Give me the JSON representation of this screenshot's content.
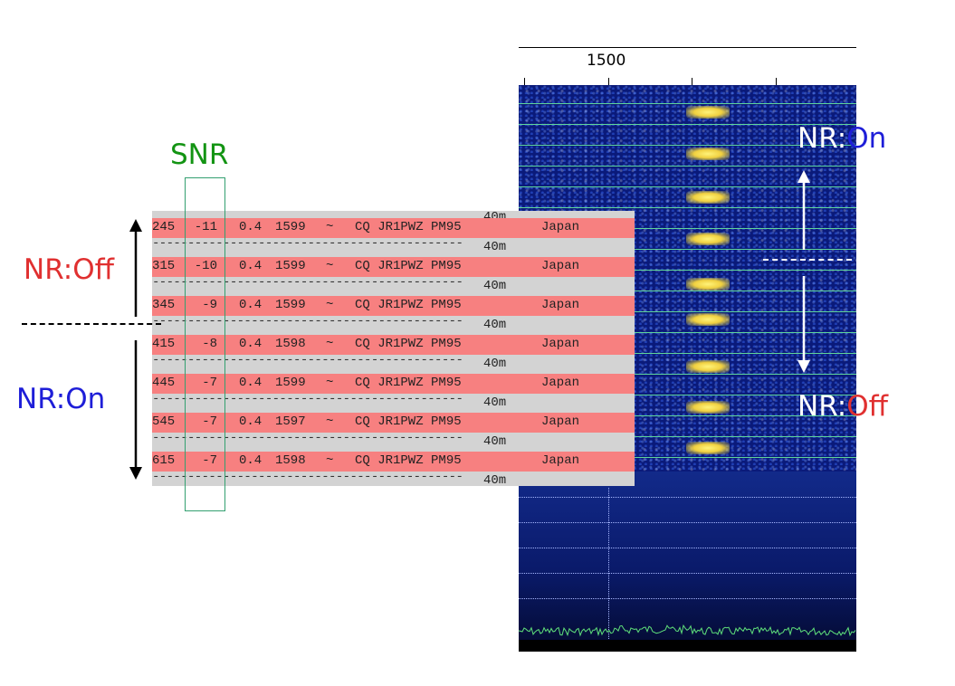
{
  "waterfall": {
    "freq_label": "1500",
    "annotation_top_prefix": "NR:",
    "annotation_top_value": "On",
    "annotation_bottom_prefix": "NR:",
    "annotation_bottom_value": "Off"
  },
  "decode_list": {
    "band_label": "40m",
    "rows": [
      {
        "time": "245",
        "snr": "-11",
        "dt": "0.4",
        "freq": "1599",
        "mode": "~",
        "message": "CQ JR1PWZ PM95",
        "country": "Japan"
      },
      {
        "time": "315",
        "snr": "-10",
        "dt": "0.4",
        "freq": "1599",
        "mode": "~",
        "message": "CQ JR1PWZ PM95",
        "country": "Japan"
      },
      {
        "time": "345",
        "snr": "-9",
        "dt": "0.4",
        "freq": "1599",
        "mode": "~",
        "message": "CQ JR1PWZ PM95",
        "country": "Japan"
      },
      {
        "time": "415",
        "snr": "-8",
        "dt": "0.4",
        "freq": "1598",
        "mode": "~",
        "message": "CQ JR1PWZ PM95",
        "country": "Japan"
      },
      {
        "time": "445",
        "snr": "-7",
        "dt": "0.4",
        "freq": "1599",
        "mode": "~",
        "message": "CQ JR1PWZ PM95",
        "country": "Japan"
      },
      {
        "time": "545",
        "snr": "-7",
        "dt": "0.4",
        "freq": "1597",
        "mode": "~",
        "message": "CQ JR1PWZ PM95",
        "country": "Japan"
      },
      {
        "time": "615",
        "snr": "-7",
        "dt": "0.4",
        "freq": "1598",
        "mode": "~",
        "message": "CQ JR1PWZ PM95",
        "country": "Japan"
      }
    ]
  },
  "annotations": {
    "snr_label": "SNR",
    "left_top": "NR:Off",
    "left_bottom": "NR:On"
  },
  "colors": {
    "decode_row": "#f78080",
    "separator_row": "#d3d3d3",
    "waterfall_bg": "#0a1a7a",
    "signal": "#f0d040",
    "grid_line": "#5fd59a",
    "snr_box": "#33a070"
  }
}
